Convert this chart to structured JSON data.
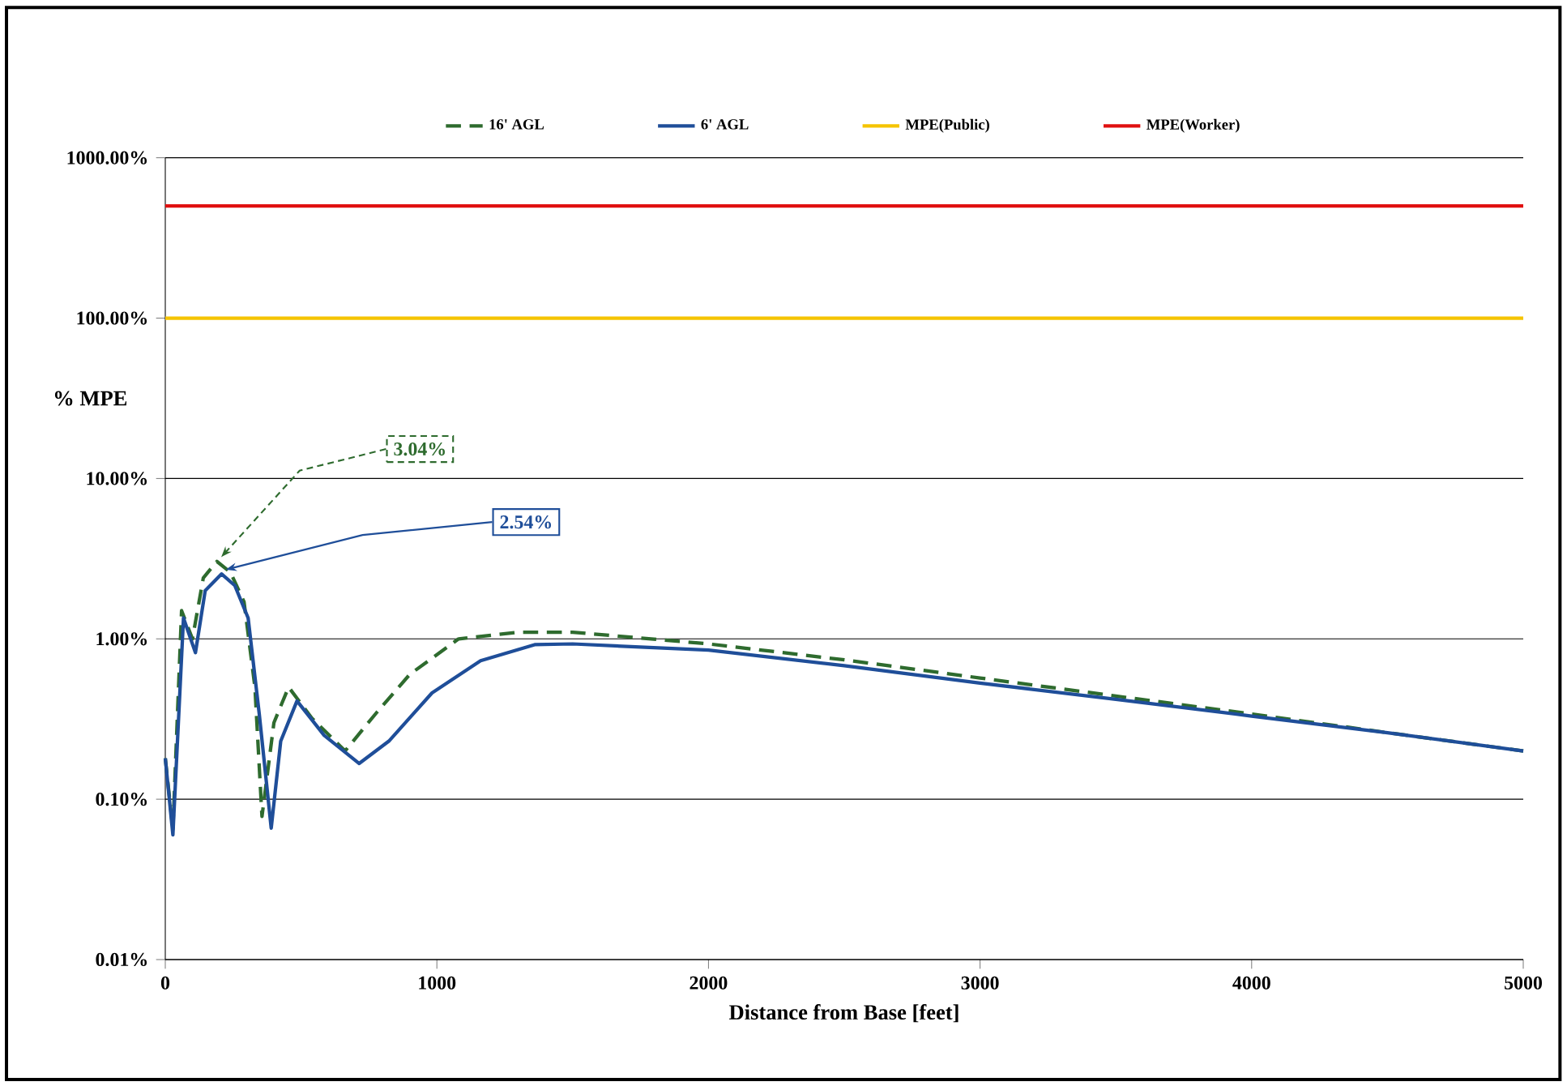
{
  "chart_data": {
    "type": "line",
    "xlabel": "Distance from Base [feet]",
    "ylabel": "% MPE",
    "log": "y",
    "grid": "y",
    "legend": "top",
    "xlim": [
      0,
      5000
    ],
    "xticks": [
      0,
      1000,
      2000,
      3000,
      4000,
      5000
    ],
    "ylim": [
      0.01,
      1000
    ],
    "yticks": [
      {
        "value": 0.01,
        "label": "0.01%"
      },
      {
        "value": 0.1,
        "label": "0.10%"
      },
      {
        "value": 1,
        "label": "1.00%"
      },
      {
        "value": 10,
        "label": "10.00%"
      },
      {
        "value": 100,
        "label": "100.00%"
      },
      {
        "value": 1000,
        "label": "1000.00%"
      }
    ],
    "series": [
      {
        "name": "16' AGL",
        "color": "#2e6b2e",
        "line_style": "dashed",
        "x": [
          0,
          28,
          60,
          100,
          140,
          190,
          240,
          290,
          330,
          356,
          400,
          454,
          540,
          662,
          780,
          900,
          1080,
          1300,
          1500,
          2000,
          2500,
          3000,
          3500,
          4000,
          4500,
          5000
        ],
        "values": [
          0.18,
          0.065,
          1.5,
          1.0,
          2.4,
          3.04,
          2.6,
          1.7,
          0.5,
          0.078,
          0.3,
          0.5,
          0.32,
          0.2,
          0.35,
          0.6,
          1.0,
          1.1,
          1.1,
          0.93,
          0.74,
          0.57,
          0.44,
          0.34,
          0.26,
          0.2
        ]
      },
      {
        "name": "6' AGL",
        "color": "#1f4e99",
        "line_style": "solid",
        "x": [
          0,
          28,
          67,
          111,
          147,
          207,
          256,
          305,
          346,
          390,
          425,
          485,
          585,
          714,
          823,
          982,
          1161,
          1360,
          1500,
          2000,
          2500,
          3000,
          3500,
          4000,
          4500,
          5000
        ],
        "values": [
          0.18,
          0.06,
          1.35,
          0.82,
          2.0,
          2.54,
          2.15,
          1.35,
          0.34,
          0.066,
          0.23,
          0.41,
          0.25,
          0.167,
          0.23,
          0.46,
          0.73,
          0.92,
          0.93,
          0.85,
          0.68,
          0.53,
          0.42,
          0.33,
          0.26,
          0.2
        ]
      },
      {
        "name": "MPE(Public)",
        "color": "#f5c400",
        "line_style": "solid",
        "x": [
          0,
          5000
        ],
        "values": [
          100,
          100
        ]
      },
      {
        "name": "MPE(Worker)",
        "color": "#e01010",
        "line_style": "solid",
        "x": [
          0,
          5000
        ],
        "values": [
          500,
          500
        ]
      }
    ],
    "annotations": [
      {
        "text": "3.04%",
        "x": 190,
        "y": 3.04
      },
      {
        "text": "2.54%",
        "x": 207,
        "y": 2.54
      }
    ]
  }
}
